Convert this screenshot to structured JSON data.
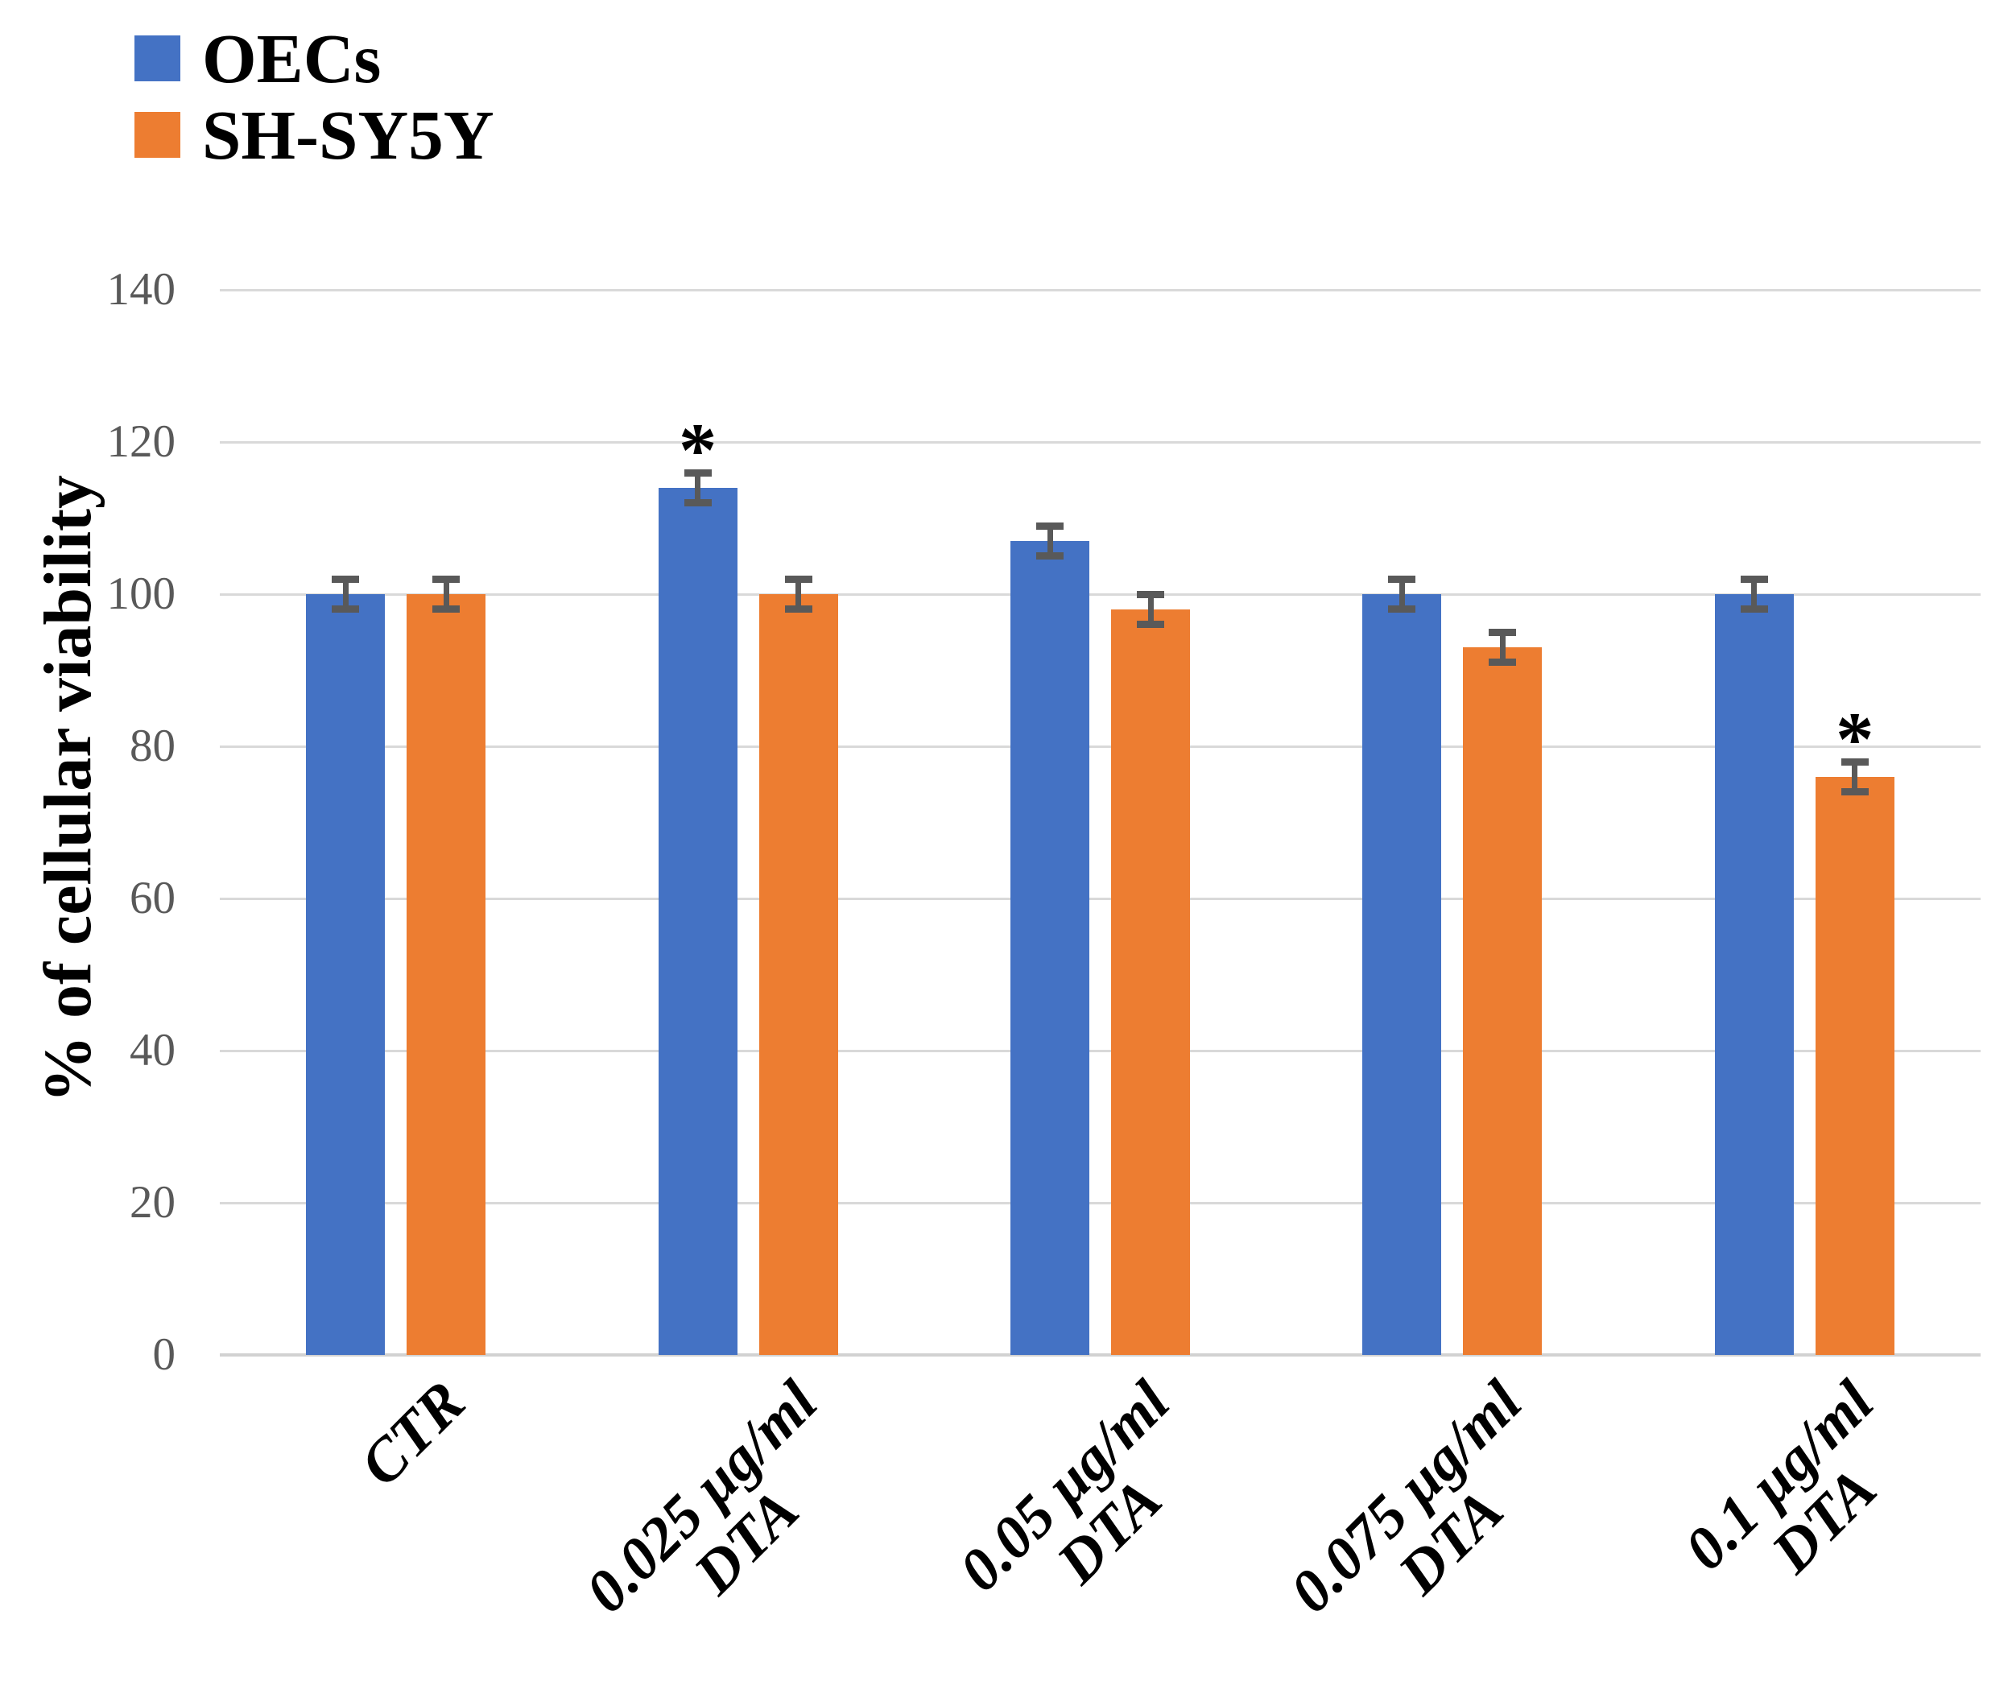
{
  "legend": {
    "position": "top-left",
    "entries": [
      {
        "label": "OECs",
        "color": "#4472C4"
      },
      {
        "label": "SH-SY5Y",
        "color": "#ED7D31"
      }
    ]
  },
  "chart_data": {
    "type": "bar",
    "title": "",
    "xlabel": "",
    "ylabel": "% of cellular viability",
    "ylim": [
      0,
      140
    ],
    "yticks": [
      0,
      20,
      40,
      60,
      80,
      100,
      120,
      140
    ],
    "grid": "horizontal",
    "legend_position": "top-left",
    "categories": [
      {
        "lines": [
          "CTR"
        ]
      },
      {
        "lines": [
          "0.025 µg/ml",
          "DTA"
        ]
      },
      {
        "lines": [
          "0.05 µg/ml",
          "DTA"
        ]
      },
      {
        "lines": [
          "0.075 µg/ml",
          "DTA"
        ]
      },
      {
        "lines": [
          "0.1 µg/ml",
          "DTA"
        ]
      }
    ],
    "series": [
      {
        "name": "OECs",
        "color": "#4472C4",
        "values": [
          100,
          114,
          107,
          100,
          100
        ],
        "errors": [
          2,
          2,
          2,
          2,
          2
        ],
        "significance": [
          "",
          "*",
          "",
          "",
          ""
        ]
      },
      {
        "name": "SH-SY5Y",
        "color": "#ED7D31",
        "values": [
          100,
          100,
          98,
          93,
          76
        ],
        "errors": [
          2,
          2,
          2,
          2,
          2
        ],
        "significance": [
          "",
          "",
          "",
          "",
          "*"
        ]
      }
    ],
    "error_bar_color": "#595959",
    "gridline_color": "#D9D9D9",
    "tick_label_color": "#595959",
    "significance_symbol": "*"
  }
}
